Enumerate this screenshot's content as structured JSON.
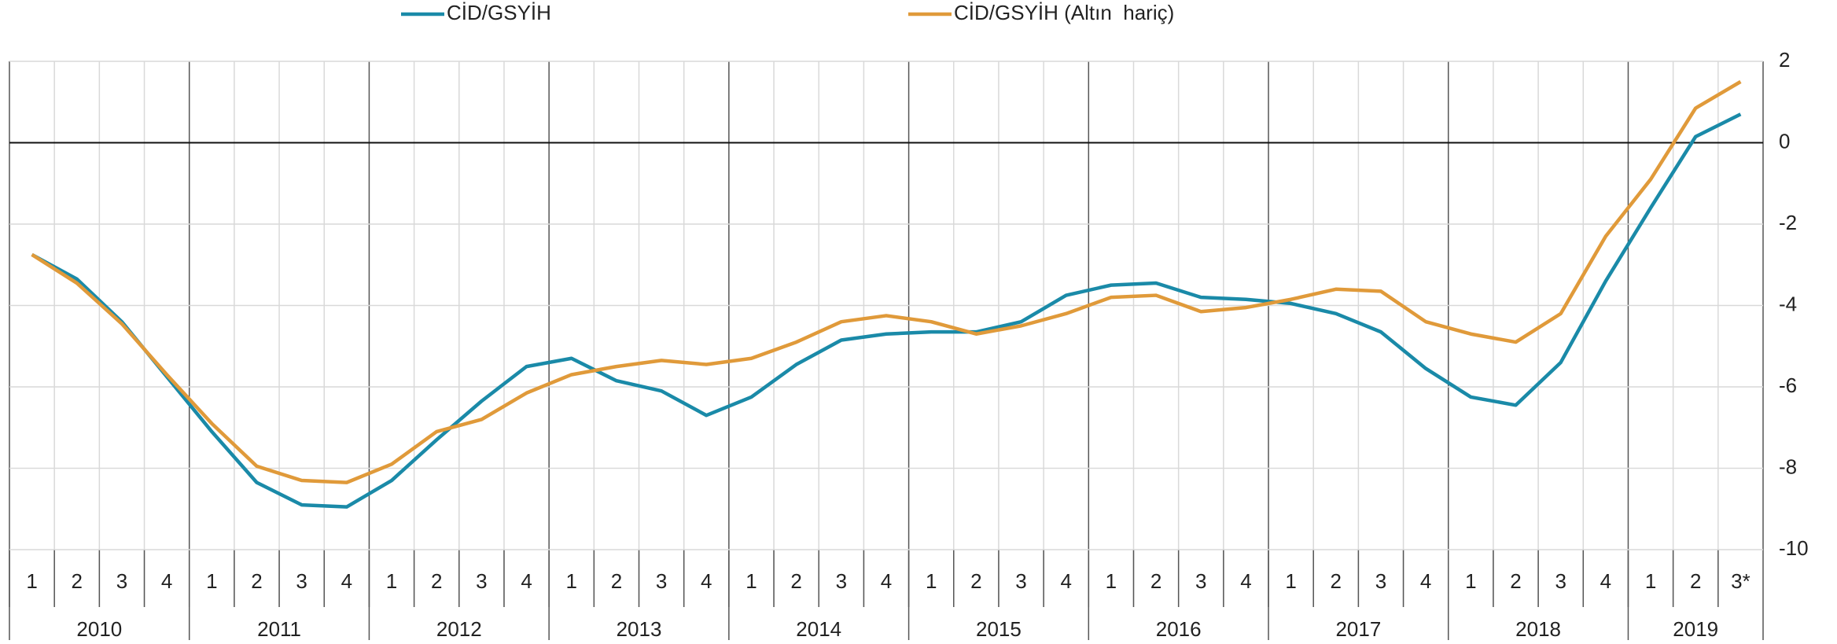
{
  "chart_data": {
    "type": "line",
    "categories": [
      "1",
      "2",
      "3",
      "4",
      "1",
      "2",
      "3",
      "4",
      "1",
      "2",
      "3",
      "4",
      "1",
      "2",
      "3",
      "4",
      "1",
      "2",
      "3",
      "4",
      "1",
      "2",
      "3",
      "4",
      "1",
      "2",
      "3",
      "4",
      "1",
      "2",
      "3",
      "4",
      "1",
      "2",
      "3",
      "4",
      "1",
      "2",
      "3*"
    ],
    "years": [
      "2010",
      "2011",
      "2012",
      "2013",
      "2014",
      "2015",
      "2016",
      "2017",
      "2018",
      "2019"
    ],
    "series": [
      {
        "name": "CİD/GSYİH",
        "color": "#1a8aa8",
        "values": [
          -2.75,
          -3.35,
          -4.4,
          -5.75,
          -7.1,
          -8.35,
          -8.9,
          -8.95,
          -8.3,
          -7.3,
          -6.35,
          -5.5,
          -5.3,
          -5.85,
          -6.1,
          -6.7,
          -6.25,
          -5.45,
          -4.85,
          -4.7,
          -4.65,
          -4.65,
          -4.4,
          -3.75,
          -3.5,
          -3.45,
          -3.8,
          -3.85,
          -3.95,
          -4.2,
          -4.65,
          -5.55,
          -6.25,
          -6.45,
          -5.4,
          -3.4,
          -1.6,
          0.15,
          0.7
        ]
      },
      {
        "name": "CİD/GSYİH (Altın  hariç)",
        "color": "#e09a3a",
        "values": [
          -2.75,
          -3.45,
          -4.45,
          -5.7,
          -6.9,
          -7.95,
          -8.3,
          -8.35,
          -7.9,
          -7.1,
          -6.8,
          -6.15,
          -5.7,
          -5.5,
          -5.35,
          -5.45,
          -5.3,
          -4.9,
          -4.4,
          -4.25,
          -4.4,
          -4.7,
          -4.5,
          -4.2,
          -3.8,
          -3.75,
          -4.15,
          -4.05,
          -3.85,
          -3.6,
          -3.65,
          -4.4,
          -4.7,
          -4.9,
          -4.2,
          -2.3,
          -0.9,
          0.85,
          1.5
        ]
      }
    ],
    "ylim": [
      -10,
      2
    ],
    "yticks": [
      2,
      0,
      -2,
      -4,
      -6,
      -8,
      -10
    ],
    "grid": true
  }
}
